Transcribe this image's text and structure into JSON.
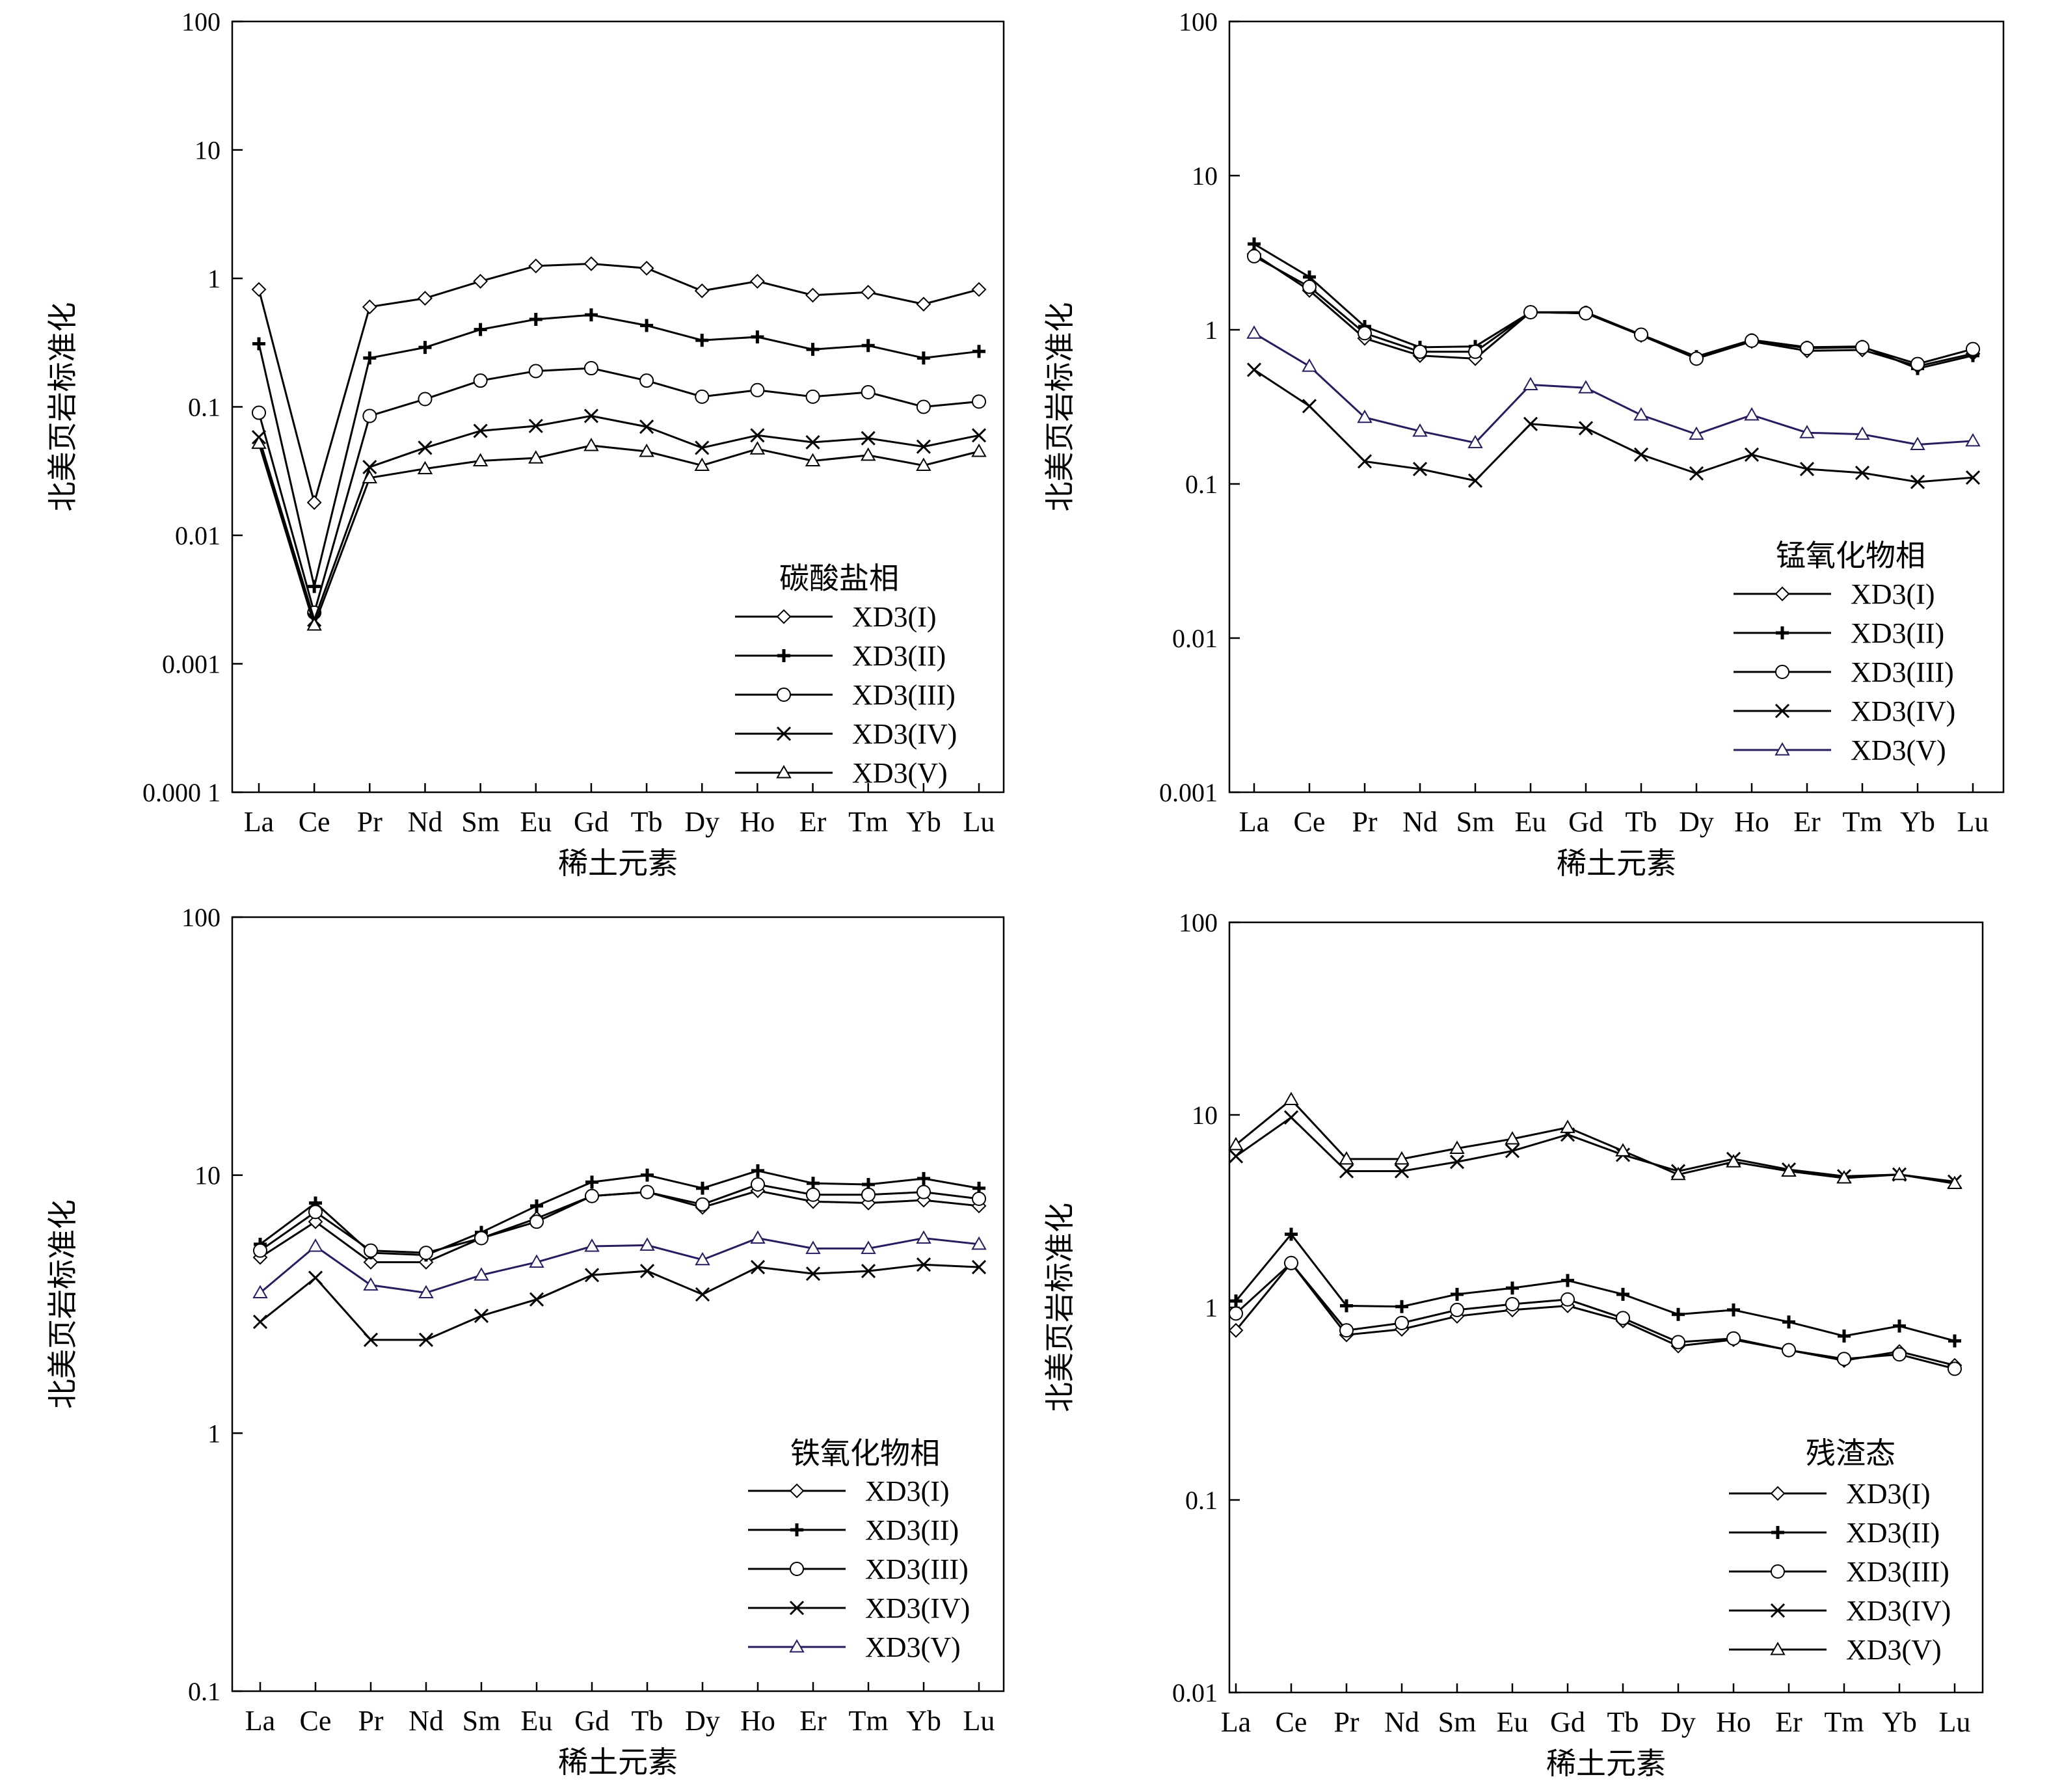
{
  "chart_data": [
    {
      "type": "line",
      "scale": "log",
      "ylim": [
        0.0001,
        100
      ],
      "yticks": [
        {
          "v": 100,
          "label": "100"
        },
        {
          "v": 10,
          "label": "10"
        },
        {
          "v": 1,
          "label": "1"
        },
        {
          "v": 0.1,
          "label": "0.1"
        },
        {
          "v": 0.01,
          "label": "0.01"
        },
        {
          "v": 0.001,
          "label": "0.001"
        },
        {
          "v": 0.0001,
          "label": "0.000 1"
        }
      ],
      "categories": [
        "La",
        "Ce",
        "Pr",
        "Nd",
        "Sm",
        "Eu",
        "Gd",
        "Tb",
        "Dy",
        "Ho",
        "Er",
        "Tm",
        "Yb",
        "Lu"
      ],
      "xlabel": "稀土元素",
      "ylabel": "北美页岩标准化",
      "legend_title": "碳酸盐相",
      "legend_position": "bottom-right",
      "series": [
        {
          "name": "XD3(I)",
          "marker": "diamond",
          "color": "#000000",
          "values": [
            0.82,
            0.018,
            0.6,
            0.7,
            0.95,
            1.25,
            1.3,
            1.2,
            0.8,
            0.95,
            0.74,
            0.78,
            0.63,
            0.82
          ]
        },
        {
          "name": "XD3(II)",
          "marker": "plus",
          "color": "#000000",
          "values": [
            0.31,
            0.004,
            0.24,
            0.29,
            0.4,
            0.48,
            0.52,
            0.43,
            0.33,
            0.35,
            0.28,
            0.3,
            0.24,
            0.27
          ]
        },
        {
          "name": "XD3(III)",
          "marker": "circle",
          "color": "#000000",
          "values": [
            0.09,
            0.0025,
            0.085,
            0.115,
            0.16,
            0.19,
            0.2,
            0.16,
            0.12,
            0.135,
            0.12,
            0.13,
            0.1,
            0.11
          ]
        },
        {
          "name": "XD3(IV)",
          "marker": "x",
          "color": "#000000",
          "values": [
            0.058,
            0.0022,
            0.034,
            0.048,
            0.065,
            0.071,
            0.085,
            0.07,
            0.048,
            0.06,
            0.053,
            0.057,
            0.049,
            0.06
          ]
        },
        {
          "name": "XD3(V)",
          "marker": "triangle",
          "color": "#000000",
          "values": [
            0.052,
            0.002,
            0.028,
            0.033,
            0.038,
            0.04,
            0.05,
            0.045,
            0.035,
            0.047,
            0.038,
            0.042,
            0.035,
            0.045
          ]
        }
      ]
    },
    {
      "type": "line",
      "scale": "log",
      "ylim": [
        0.001,
        100
      ],
      "yticks": [
        {
          "v": 100,
          "label": "100"
        },
        {
          "v": 10,
          "label": "10"
        },
        {
          "v": 1,
          "label": "1"
        },
        {
          "v": 0.1,
          "label": "0.1"
        },
        {
          "v": 0.01,
          "label": "0.01"
        },
        {
          "v": 0.001,
          "label": "0.001"
        }
      ],
      "categories": [
        "La",
        "Ce",
        "Pr",
        "Nd",
        "Sm",
        "Eu",
        "Gd",
        "Tb",
        "Dy",
        "Ho",
        "Er",
        "Tm",
        "Yb",
        "Lu"
      ],
      "xlabel": "稀土元素",
      "ylabel": "北美页岩标准化",
      "legend_title": "锰氧化物相",
      "legend_position": "bottom-right",
      "series": [
        {
          "name": "XD3(I)",
          "marker": "diamond",
          "color": "#000000",
          "values": [
            3.1,
            1.8,
            0.88,
            0.68,
            0.65,
            1.3,
            1.28,
            0.92,
            0.65,
            0.84,
            0.73,
            0.74,
            0.58,
            0.7
          ]
        },
        {
          "name": "XD3(II)",
          "marker": "plus",
          "color": "#000000",
          "values": [
            3.6,
            2.2,
            1.05,
            0.77,
            0.78,
            1.3,
            1.3,
            0.93,
            0.67,
            0.86,
            0.77,
            0.78,
            0.56,
            0.68
          ]
        },
        {
          "name": "XD3(III)",
          "marker": "circle",
          "color": "#000000",
          "values": [
            3.0,
            1.9,
            0.95,
            0.72,
            0.72,
            1.3,
            1.28,
            0.93,
            0.65,
            0.85,
            0.76,
            0.77,
            0.6,
            0.75
          ]
        },
        {
          "name": "XD3(IV)",
          "marker": "x",
          "color": "#000000",
          "values": [
            0.55,
            0.32,
            0.14,
            0.125,
            0.105,
            0.245,
            0.23,
            0.155,
            0.117,
            0.155,
            0.125,
            0.118,
            0.103,
            0.11
          ]
        },
        {
          "name": "XD3(V)",
          "marker": "triangle",
          "color": "#2a1a5e",
          "values": [
            0.95,
            0.58,
            0.27,
            0.22,
            0.185,
            0.44,
            0.42,
            0.28,
            0.21,
            0.28,
            0.215,
            0.21,
            0.18,
            0.19
          ]
        }
      ]
    },
    {
      "type": "line",
      "scale": "log",
      "ylim": [
        0.1,
        100
      ],
      "yticks": [
        {
          "v": 100,
          "label": "100"
        },
        {
          "v": 10,
          "label": "10"
        },
        {
          "v": 1,
          "label": "1"
        },
        {
          "v": 0.1,
          "label": "0.1"
        }
      ],
      "categories": [
        "La",
        "Ce",
        "Pr",
        "Nd",
        "Sm",
        "Eu",
        "Gd",
        "Tb",
        "Dy",
        "Ho",
        "Er",
        "Tm",
        "Yb",
        "Lu"
      ],
      "xlabel": "稀土元素",
      "ylabel": "北美页岩标准化",
      "legend_title": "铁氧化物相",
      "legend_position": "bottom-right",
      "series": [
        {
          "name": "XD3(I)",
          "marker": "diamond",
          "color": "#000000",
          "values": [
            4.8,
            6.6,
            4.6,
            4.6,
            5.7,
            6.8,
            8.3,
            8.6,
            7.5,
            8.7,
            7.9,
            7.8,
            8.0,
            7.6
          ]
        },
        {
          "name": "XD3(II)",
          "marker": "plus",
          "color": "#000000",
          "values": [
            5.4,
            7.8,
            5.0,
            4.9,
            6.0,
            7.6,
            9.4,
            10.0,
            8.9,
            10.4,
            9.3,
            9.2,
            9.7,
            8.9
          ]
        },
        {
          "name": "XD3(III)",
          "marker": "circle",
          "color": "#000000",
          "values": [
            5.1,
            7.2,
            5.1,
            5.0,
            5.7,
            6.6,
            8.3,
            8.6,
            7.7,
            9.2,
            8.4,
            8.4,
            8.6,
            8.1
          ]
        },
        {
          "name": "XD3(IV)",
          "marker": "x",
          "color": "#000000",
          "values": [
            2.7,
            4.0,
            2.3,
            2.3,
            2.85,
            3.3,
            4.1,
            4.25,
            3.45,
            4.4,
            4.15,
            4.25,
            4.5,
            4.4
          ]
        },
        {
          "name": "XD3(V)",
          "marker": "triangle",
          "color": "#2a1a5e",
          "values": [
            3.5,
            5.3,
            3.75,
            3.5,
            4.1,
            4.6,
            5.3,
            5.35,
            4.7,
            5.7,
            5.2,
            5.2,
            5.7,
            5.4
          ]
        }
      ]
    },
    {
      "type": "line",
      "scale": "log",
      "ylim": [
        0.01,
        100
      ],
      "yticks": [
        {
          "v": 100,
          "label": "100"
        },
        {
          "v": 10,
          "label": "10"
        },
        {
          "v": 1,
          "label": "1"
        },
        {
          "v": 0.1,
          "label": "0.1"
        },
        {
          "v": 0.01,
          "label": "0.01"
        }
      ],
      "categories": [
        "La",
        "Ce",
        "Pr",
        "Nd",
        "Sm",
        "Eu",
        "Gd",
        "Tb",
        "Dy",
        "Ho",
        "Er",
        "Tm",
        "Yb",
        "Lu"
      ],
      "xlabel": "稀土元素",
      "ylabel": "北美页岩标准化",
      "legend_title": "残渣态",
      "legend_position": "bottom-right",
      "series": [
        {
          "name": "XD3(I)",
          "marker": "diamond",
          "color": "#000000",
          "values": [
            0.76,
            1.7,
            0.72,
            0.77,
            0.9,
            0.97,
            1.02,
            0.85,
            0.63,
            0.68,
            0.6,
            0.53,
            0.59,
            0.5
          ]
        },
        {
          "name": "XD3(II)",
          "marker": "plus",
          "color": "#000000",
          "values": [
            1.08,
            2.4,
            1.02,
            1.01,
            1.17,
            1.26,
            1.38,
            1.17,
            0.92,
            0.97,
            0.84,
            0.71,
            0.8,
            0.67
          ]
        },
        {
          "name": "XD3(III)",
          "marker": "circle",
          "color": "#000000",
          "values": [
            0.93,
            1.7,
            0.76,
            0.83,
            0.97,
            1.04,
            1.1,
            0.88,
            0.66,
            0.69,
            0.6,
            0.54,
            0.57,
            0.48
          ]
        },
        {
          "name": "XD3(IV)",
          "marker": "x",
          "color": "#000000",
          "values": [
            6.1,
            9.7,
            5.1,
            5.1,
            5.7,
            6.5,
            7.9,
            6.2,
            5.1,
            5.9,
            5.2,
            4.8,
            4.9,
            4.5
          ]
        },
        {
          "name": "XD3(V)",
          "marker": "triangle",
          "color": "#000000",
          "values": [
            7.0,
            12.0,
            5.9,
            5.9,
            6.7,
            7.5,
            8.6,
            6.5,
            4.9,
            5.7,
            5.1,
            4.7,
            4.9,
            4.4
          ]
        }
      ]
    }
  ]
}
